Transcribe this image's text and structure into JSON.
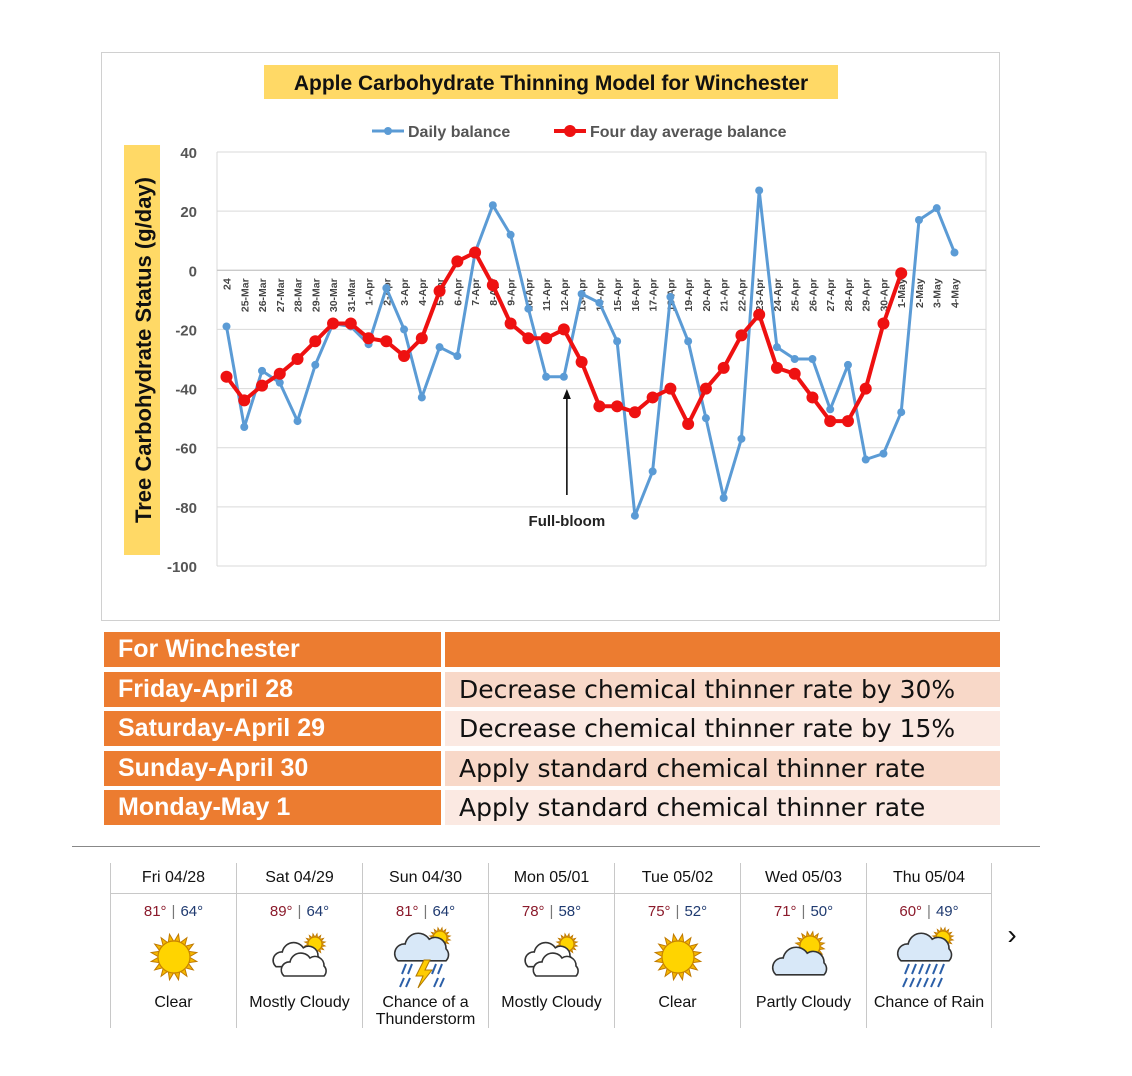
{
  "chart_data": {
    "type": "line",
    "title": "Apple Carbohydrate Thinning Model for Winchester",
    "ylabel": "Tree Carbohydrate Status (g/day)",
    "ylim": [
      -100,
      40
    ],
    "yticks": [
      40,
      20,
      0,
      -20,
      -40,
      -60,
      -80,
      -100
    ],
    "categories": [
      "24",
      "25-Mar",
      "26-Mar",
      "27-Mar",
      "28-Mar",
      "29-Mar",
      "30-Mar",
      "31-Mar",
      "1-Apr",
      "2-Apr",
      "3-Apr",
      "4-Apr",
      "5-Apr",
      "6-Apr",
      "7-Apr",
      "8-Apr",
      "9-Apr",
      "10-Apr",
      "11-Apr",
      "12-Apr",
      "13-Apr",
      "14-Apr",
      "15-Apr",
      "16-Apr",
      "17-Apr",
      "18-Apr",
      "19-Apr",
      "20-Apr",
      "21-Apr",
      "22-Apr",
      "23-Apr",
      "24-Apr",
      "25-Apr",
      "26-Apr",
      "27-Apr",
      "28-Apr",
      "29-Apr",
      "30-Apr",
      "1-May",
      "2-May",
      "3-May",
      "4-May"
    ],
    "series": [
      {
        "name": "Daily balance",
        "color": "#5b9bd5",
        "values": [
          -19,
          -53,
          -34,
          -38,
          -51,
          -32,
          -18,
          -19,
          -25,
          -6,
          -20,
          -43,
          -26,
          -29,
          6,
          22,
          12,
          -13,
          -36,
          -36,
          -8,
          -11,
          -24,
          -83,
          -68,
          -9,
          -24,
          -50,
          -77,
          -57,
          27,
          -26,
          -30,
          -30,
          -47,
          -32,
          -64,
          -62,
          -48,
          17,
          21,
          6
        ]
      },
      {
        "name": "Four day average balance",
        "color": "#ee1111",
        "values": [
          -36,
          -44,
          -39,
          -35,
          -30,
          -24,
          -18,
          -18,
          -23,
          -24,
          -29,
          -23,
          -7,
          3,
          6,
          -5,
          -18,
          -23,
          -23,
          -20,
          -31,
          -46,
          -46,
          -48,
          -43,
          -40,
          -52,
          -40,
          -33,
          -22,
          -15,
          -33,
          -35,
          -43,
          -51,
          -51,
          -40,
          -18,
          -1,
          null,
          null,
          null
        ]
      }
    ],
    "annotation": {
      "text": "Full-bloom",
      "x": "12-Apr"
    },
    "legend_position": "top"
  },
  "table": {
    "header": "For Winchester",
    "rows": [
      {
        "day": "Friday-April 28",
        "rec": "Decrease chemical thinner rate by 30%",
        "bg": "#f8d8c8"
      },
      {
        "day": "Saturday-April 29",
        "rec": "Decrease chemical thinner rate by 15%",
        "bg": "#fbe9e2"
      },
      {
        "day": "Sunday-April 30",
        "rec": " Apply standard chemical thinner rate",
        "bg": "#f8d8c8"
      },
      {
        "day": "Monday-May 1",
        "rec": "Apply standard chemical thinner rate",
        "bg": "#fbe9e2"
      }
    ]
  },
  "forecast": [
    {
      "date": "Fri 04/28",
      "hi": "81°",
      "lo": "64°",
      "icon": "sun-icon",
      "cond": "Clear"
    },
    {
      "date": "Sat 04/29",
      "hi": "89°",
      "lo": "64°",
      "icon": "mostly-cloudy-icon",
      "cond": "Mostly Cloudy"
    },
    {
      "date": "Sun 04/30",
      "hi": "81°",
      "lo": "64°",
      "icon": "thunderstorm-icon",
      "cond": "Chance of a Thunderstorm"
    },
    {
      "date": "Mon 05/01",
      "hi": "78°",
      "lo": "58°",
      "icon": "mostly-cloudy-icon",
      "cond": "Mostly Cloudy"
    },
    {
      "date": "Tue 05/02",
      "hi": "75°",
      "lo": "52°",
      "icon": "sun-icon",
      "cond": "Clear"
    },
    {
      "date": "Wed 05/03",
      "hi": "71°",
      "lo": "50°",
      "icon": "partly-cloudy-icon",
      "cond": "Partly Cloudy"
    },
    {
      "date": "Thu 05/04",
      "hi": "60°",
      "lo": "49°",
      "icon": "rain-icon",
      "cond": "Chance of Rain"
    }
  ],
  "forecast_next": "›"
}
